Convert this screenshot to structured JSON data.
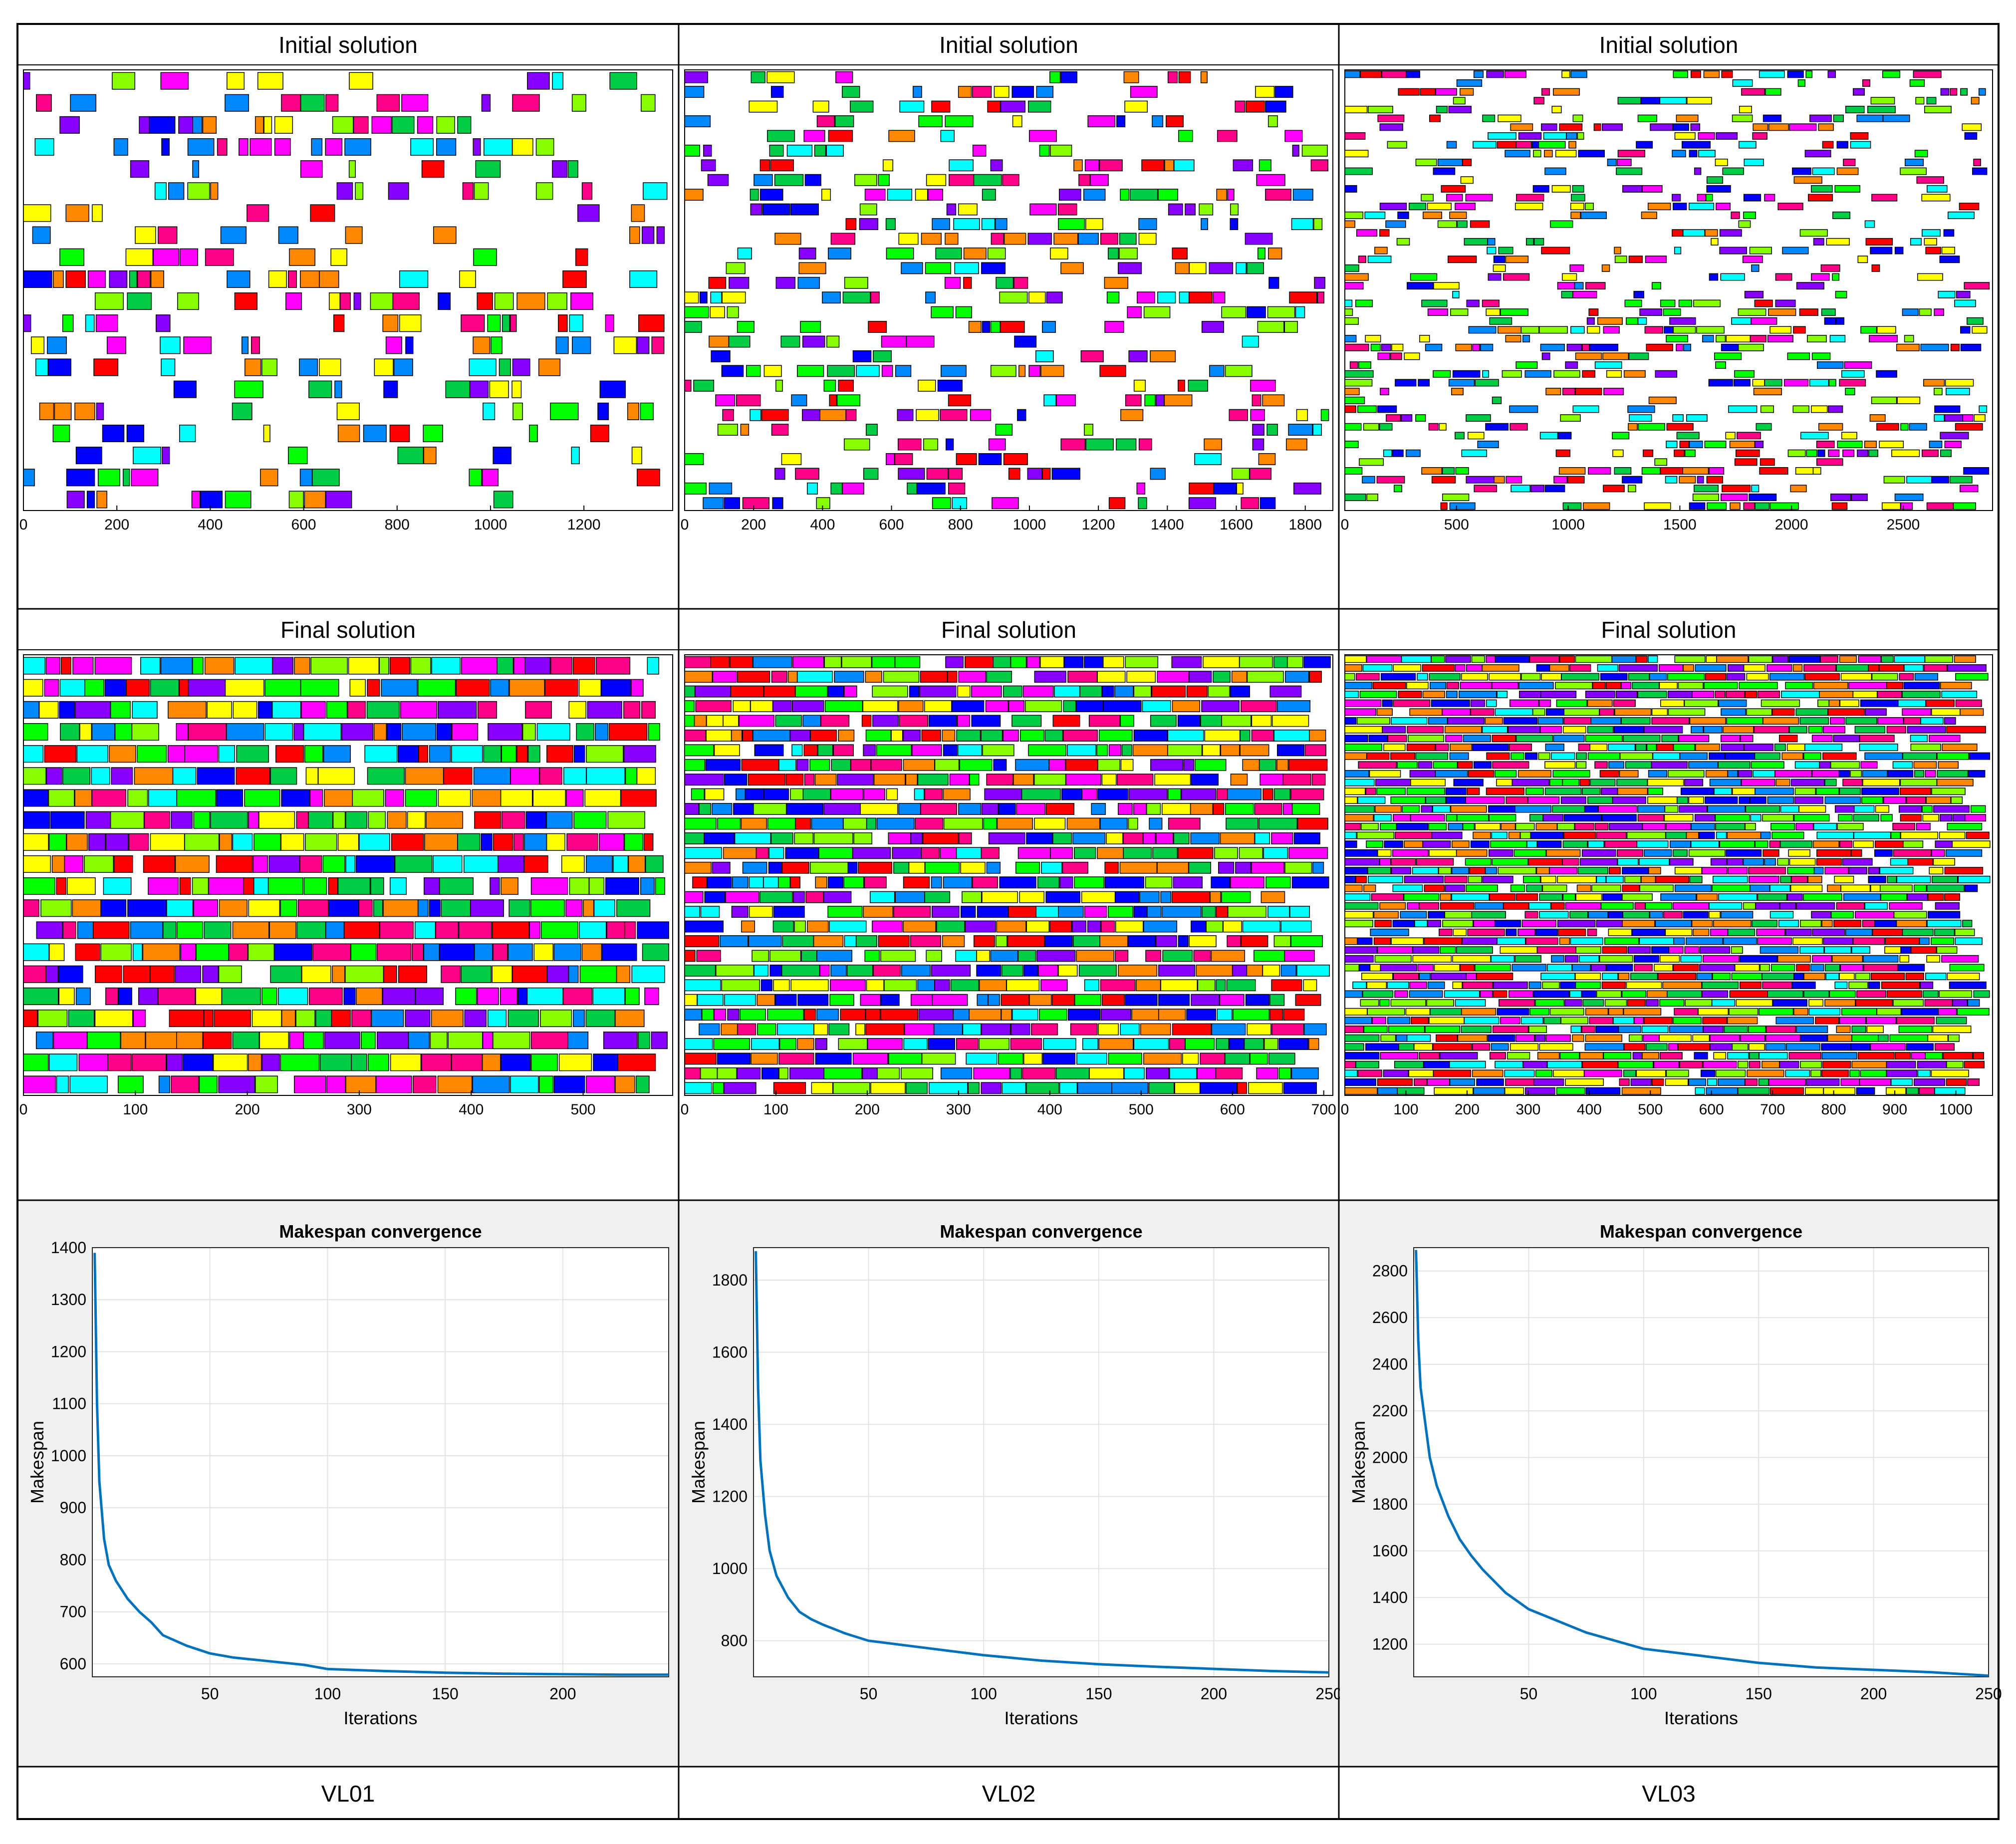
{
  "panels": [
    {
      "label": "VL01",
      "initial": {
        "title": "Initial solution",
        "x_ticks": [
          0,
          200,
          400,
          600,
          800,
          1000,
          1200
        ],
        "x_max": 1390,
        "machines": 20
      },
      "final": {
        "title": "Final solution",
        "x_ticks": [
          0,
          100,
          200,
          300,
          400,
          500
        ],
        "x_max": 580,
        "machines": 20
      },
      "convergence": {
        "title": "Makespan convergence",
        "xlabel": "Iterations",
        "ylabel": "Makespan",
        "x_ticks": [
          50,
          100,
          150,
          200
        ],
        "y_ticks": [
          600,
          700,
          800,
          900,
          1000,
          1100,
          1200,
          1300,
          1400
        ],
        "xlim": [
          0,
          245
        ],
        "ylim": [
          575,
          1400
        ],
        "x": [
          1,
          2,
          3,
          5,
          7,
          10,
          15,
          20,
          25,
          30,
          40,
          50,
          60,
          75,
          90,
          100,
          125,
          150,
          175,
          200,
          225,
          245
        ],
        "y": [
          1390,
          1100,
          950,
          840,
          790,
          760,
          725,
          700,
          680,
          655,
          635,
          620,
          612,
          605,
          598,
          590,
          586,
          583,
          581,
          580,
          579,
          579
        ]
      }
    },
    {
      "label": "VL02",
      "initial": {
        "title": "Initial solution",
        "x_ticks": [
          0,
          200,
          400,
          600,
          800,
          1000,
          1200,
          1400,
          1600,
          1800
        ],
        "x_max": 1880,
        "machines": 30
      },
      "final": {
        "title": "Final solution",
        "x_ticks": [
          0,
          100,
          200,
          300,
          400,
          500,
          600,
          700
        ],
        "x_max": 710,
        "machines": 30
      },
      "convergence": {
        "title": "Makespan convergence",
        "xlabel": "Iterations",
        "ylabel": "Makespan",
        "x_ticks": [
          50,
          100,
          150,
          200,
          250
        ],
        "y_ticks": [
          800,
          1000,
          1200,
          1400,
          1600,
          1800
        ],
        "xlim": [
          0,
          250
        ],
        "ylim": [
          700,
          1890
        ],
        "x": [
          1,
          2,
          3,
          5,
          7,
          10,
          15,
          20,
          25,
          30,
          40,
          50,
          75,
          100,
          125,
          150,
          175,
          200,
          225,
          250
        ],
        "y": [
          1880,
          1500,
          1300,
          1150,
          1050,
          980,
          920,
          880,
          860,
          845,
          820,
          800,
          780,
          760,
          745,
          735,
          728,
          722,
          716,
          712
        ]
      }
    },
    {
      "label": "VL03",
      "initial": {
        "title": "Initial solution",
        "x_ticks": [
          0,
          500,
          1000,
          1500,
          2000,
          2500
        ],
        "x_max": 2900,
        "machines": 50
      },
      "final": {
        "title": "Final solution",
        "x_ticks": [
          0,
          100,
          200,
          300,
          400,
          500,
          600,
          700,
          800,
          900,
          1000
        ],
        "x_max": 1060,
        "machines": 50
      },
      "convergence": {
        "title": "Makespan convergence",
        "xlabel": "Iterations",
        "ylabel": "Makespan",
        "x_ticks": [
          50,
          100,
          150,
          200,
          250
        ],
        "y_ticks": [
          1200,
          1400,
          1600,
          1800,
          2000,
          2200,
          2400,
          2600,
          2800
        ],
        "xlim": [
          0,
          250
        ],
        "ylim": [
          1060,
          2900
        ],
        "x": [
          1,
          2,
          3,
          5,
          7,
          10,
          15,
          20,
          25,
          30,
          40,
          50,
          75,
          100,
          125,
          150,
          175,
          200,
          225,
          250
        ],
        "y": [
          2890,
          2500,
          2300,
          2150,
          2000,
          1880,
          1750,
          1650,
          1580,
          1520,
          1420,
          1350,
          1250,
          1180,
          1150,
          1120,
          1100,
          1090,
          1080,
          1065
        ]
      }
    }
  ],
  "colors": {
    "job_palette": [
      "#ff0000",
      "#00ff00",
      "#0000ff",
      "#ffff00",
      "#ff00ff",
      "#00ffff",
      "#8800ff",
      "#ff8800",
      "#00cc44",
      "#0088ff",
      "#ff0088",
      "#88ff00"
    ],
    "line": "#0072bd",
    "chart_background": "#f0f0f0"
  },
  "chart_data": [
    {
      "type": "line",
      "title": "Makespan convergence",
      "xlabel": "Iterations",
      "ylabel": "Makespan",
      "xlim": [
        0,
        245
      ],
      "ylim": [
        575,
        1400
      ],
      "series": [
        {
          "x": [
            1,
            2,
            3,
            5,
            7,
            10,
            15,
            20,
            25,
            30,
            40,
            50,
            60,
            75,
            90,
            100,
            125,
            150,
            175,
            200,
            225,
            245
          ],
          "y": [
            1390,
            1100,
            950,
            840,
            790,
            760,
            725,
            700,
            680,
            655,
            635,
            620,
            612,
            605,
            598,
            590,
            586,
            583,
            581,
            580,
            579,
            579
          ]
        }
      ]
    },
    {
      "type": "line",
      "title": "Makespan convergence",
      "xlabel": "Iterations",
      "ylabel": "Makespan",
      "xlim": [
        0,
        250
      ],
      "ylim": [
        700,
        1890
      ],
      "series": [
        {
          "x": [
            1,
            2,
            3,
            5,
            7,
            10,
            15,
            20,
            25,
            30,
            40,
            50,
            75,
            100,
            125,
            150,
            175,
            200,
            225,
            250
          ],
          "y": [
            1880,
            1500,
            1300,
            1150,
            1050,
            980,
            920,
            880,
            860,
            845,
            820,
            800,
            780,
            760,
            745,
            735,
            728,
            722,
            716,
            712
          ]
        }
      ]
    },
    {
      "type": "line",
      "title": "Makespan convergence",
      "xlabel": "Iterations",
      "ylabel": "Makespan",
      "xlim": [
        0,
        250
      ],
      "ylim": [
        1060,
        2900
      ],
      "series": [
        {
          "x": [
            1,
            2,
            3,
            5,
            7,
            10,
            15,
            20,
            25,
            30,
            40,
            50,
            75,
            100,
            125,
            150,
            175,
            200,
            225,
            250
          ],
          "y": [
            2890,
            2500,
            2300,
            2150,
            2000,
            1880,
            1750,
            1650,
            1580,
            1520,
            1420,
            1350,
            1250,
            1180,
            1150,
            1120,
            1100,
            1090,
            1080,
            1065
          ]
        }
      ]
    }
  ]
}
